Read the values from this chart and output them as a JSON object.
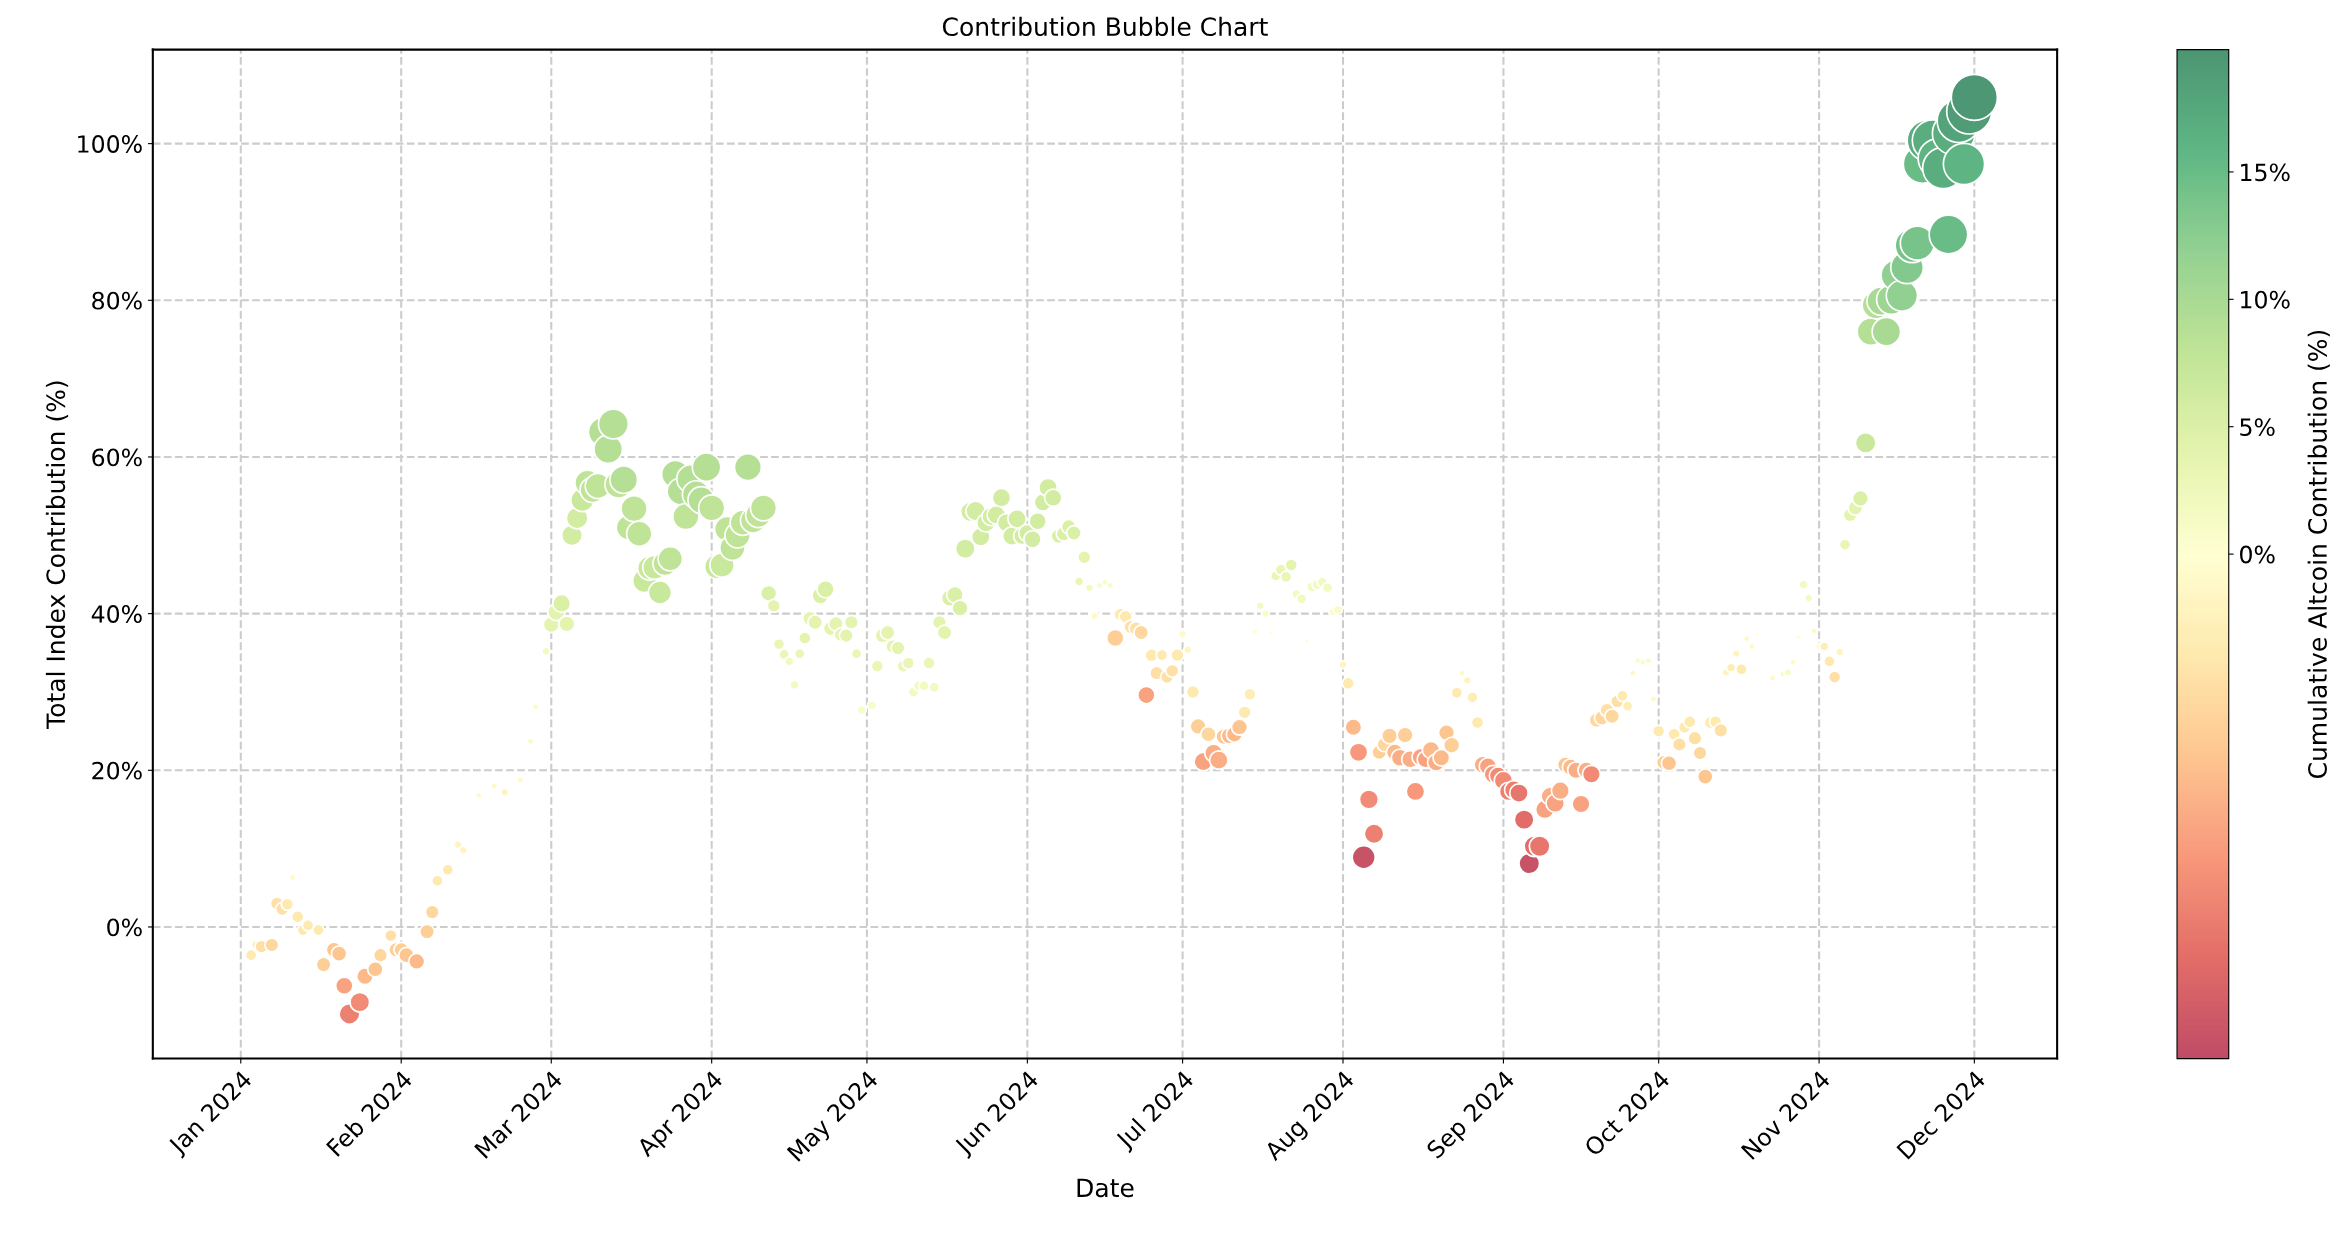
{
  "chart_data": {
    "type": "bubble",
    "title": "Contribution Bubble Chart",
    "xlabel": "Date",
    "ylabel": "Total Index Contribution (%)",
    "clabel": "Cumulative Altcoin Contribution (%)",
    "xlim": [
      "2023-12-15",
      "2024-12-17"
    ],
    "ylim": [
      -16.8,
      112
    ],
    "xticks": [
      {
        "value": "2024-01-01",
        "label": "Jan 2024"
      },
      {
        "value": "2024-02-01",
        "label": "Feb 2024"
      },
      {
        "value": "2024-03-01",
        "label": "Mar 2024"
      },
      {
        "value": "2024-04-01",
        "label": "Apr 2024"
      },
      {
        "value": "2024-05-01",
        "label": "May 2024"
      },
      {
        "value": "2024-06-01",
        "label": "Jun 2024"
      },
      {
        "value": "2024-07-01",
        "label": "Jul 2024"
      },
      {
        "value": "2024-08-01",
        "label": "Aug 2024"
      },
      {
        "value": "2024-09-01",
        "label": "Sep 2024"
      },
      {
        "value": "2024-10-01",
        "label": "Oct 2024"
      },
      {
        "value": "2024-11-01",
        "label": "Nov 2024"
      },
      {
        "value": "2024-12-01",
        "label": "Dec 2024"
      }
    ],
    "yticks": [
      {
        "value": 0,
        "label": "0%"
      },
      {
        "value": 20,
        "label": "20%"
      },
      {
        "value": 40,
        "label": "40%"
      },
      {
        "value": 60,
        "label": "60%"
      },
      {
        "value": 80,
        "label": "80%"
      },
      {
        "value": 100,
        "label": "100%"
      }
    ],
    "clim": [
      -19.8,
      19.8
    ],
    "cticks": [
      {
        "value": 0,
        "label": "0%"
      },
      {
        "value": 5,
        "label": "5%"
      },
      {
        "value": 10,
        "label": "10%"
      },
      {
        "value": 15,
        "label": "15%"
      }
    ],
    "grid": true,
    "marker": "circle",
    "series": [
      {
        "x": [
          "2024-01-03",
          "2024-01-04",
          "2024-01-05",
          "2024-01-07",
          "2024-01-08",
          "2024-01-09",
          "2024-01-10",
          "2024-01-11",
          "2024-01-12",
          "2024-01-13",
          "2024-01-14",
          "2024-01-16",
          "2024-01-17",
          "2024-01-19",
          "2024-01-20",
          "2024-01-21",
          "2024-01-22",
          "2024-01-24",
          "2024-01-25",
          "2024-01-27",
          "2024-01-28",
          "2024-01-30",
          "2024-01-31",
          "2024-02-01",
          "2024-02-02",
          "2024-02-04",
          "2024-02-06",
          "2024-02-07",
          "2024-02-08",
          "2024-02-10",
          "2024-02-12",
          "2024-02-13",
          "2024-02-16",
          "2024-02-19",
          "2024-02-21",
          "2024-02-24",
          "2024-02-26",
          "2024-02-27",
          "2024-02-29",
          "2024-03-01",
          "2024-03-02",
          "2024-03-03",
          "2024-03-04",
          "2024-03-05",
          "2024-03-06",
          "2024-03-07",
          "2024-03-08",
          "2024-03-09",
          "2024-03-10",
          "2024-03-11",
          "2024-03-12",
          "2024-03-13",
          "2024-03-14",
          "2024-03-15",
          "2024-03-16",
          "2024-03-17",
          "2024-03-18",
          "2024-03-19",
          "2024-03-20",
          "2024-03-21",
          "2024-03-22",
          "2024-03-23",
          "2024-03-24",
          "2024-03-25",
          "2024-03-26",
          "2024-03-27",
          "2024-03-28",
          "2024-03-29",
          "2024-03-30",
          "2024-03-31",
          "2024-04-01",
          "2024-04-02",
          "2024-04-03",
          "2024-04-04",
          "2024-04-05",
          "2024-04-06",
          "2024-04-07",
          "2024-04-08",
          "2024-04-09",
          "2024-04-10",
          "2024-04-11",
          "2024-04-12",
          "2024-04-13",
          "2024-04-14",
          "2024-04-15",
          "2024-04-16",
          "2024-04-17",
          "2024-04-18",
          "2024-04-19",
          "2024-04-20",
          "2024-04-21",
          "2024-04-22",
          "2024-04-23",
          "2024-04-24",
          "2024-04-25",
          "2024-04-26",
          "2024-04-27",
          "2024-04-28",
          "2024-04-29",
          "2024-04-30",
          "2024-05-02",
          "2024-05-03",
          "2024-05-04",
          "2024-05-05",
          "2024-05-06",
          "2024-05-07",
          "2024-05-08",
          "2024-05-09",
          "2024-05-10",
          "2024-05-11",
          "2024-05-12",
          "2024-05-13",
          "2024-05-14",
          "2024-05-15",
          "2024-05-16",
          "2024-05-17",
          "2024-05-18",
          "2024-05-19",
          "2024-05-20",
          "2024-05-21",
          "2024-05-22",
          "2024-05-23",
          "2024-05-24",
          "2024-05-25",
          "2024-05-26",
          "2024-05-27",
          "2024-05-28",
          "2024-05-29",
          "2024-05-30",
          "2024-05-31",
          "2024-06-01",
          "2024-06-02",
          "2024-06-03",
          "2024-06-04",
          "2024-06-05",
          "2024-06-06",
          "2024-06-07",
          "2024-06-08",
          "2024-06-09",
          "2024-06-10",
          "2024-06-11",
          "2024-06-12",
          "2024-06-13",
          "2024-06-14",
          "2024-06-15",
          "2024-06-16",
          "2024-06-17",
          "2024-06-18",
          "2024-06-19",
          "2024-06-20",
          "2024-06-21",
          "2024-06-22",
          "2024-06-23",
          "2024-06-24",
          "2024-06-25",
          "2024-06-26",
          "2024-06-27",
          "2024-06-28",
          "2024-06-29",
          "2024-06-30",
          "2024-07-01",
          "2024-07-02",
          "2024-07-03",
          "2024-07-04",
          "2024-07-05",
          "2024-07-06",
          "2024-07-07",
          "2024-07-08",
          "2024-07-09",
          "2024-07-10",
          "2024-07-11",
          "2024-07-12",
          "2024-07-13",
          "2024-07-14",
          "2024-07-15",
          "2024-07-16",
          "2024-07-17",
          "2024-07-18",
          "2024-07-19",
          "2024-07-20",
          "2024-07-21",
          "2024-07-22",
          "2024-07-23",
          "2024-07-24",
          "2024-07-25",
          "2024-07-26",
          "2024-07-27",
          "2024-07-28",
          "2024-07-29",
          "2024-07-30",
          "2024-07-31",
          "2024-08-01",
          "2024-08-02",
          "2024-08-03",
          "2024-08-04",
          "2024-08-05",
          "2024-08-06",
          "2024-08-07",
          "2024-08-08",
          "2024-08-09",
          "2024-08-10",
          "2024-08-11",
          "2024-08-12",
          "2024-08-13",
          "2024-08-14",
          "2024-08-15",
          "2024-08-16",
          "2024-08-17",
          "2024-08-18",
          "2024-08-19",
          "2024-08-20",
          "2024-08-21",
          "2024-08-22",
          "2024-08-23",
          "2024-08-24",
          "2024-08-25",
          "2024-08-26",
          "2024-08-27",
          "2024-08-28",
          "2024-08-29",
          "2024-08-30",
          "2024-08-31",
          "2024-09-01",
          "2024-09-02",
          "2024-09-03",
          "2024-09-04",
          "2024-09-05",
          "2024-09-06",
          "2024-09-07",
          "2024-09-08",
          "2024-09-09",
          "2024-09-10",
          "2024-09-11",
          "2024-09-12",
          "2024-09-13",
          "2024-09-14",
          "2024-09-15",
          "2024-09-16",
          "2024-09-17",
          "2024-09-18",
          "2024-09-19",
          "2024-09-20",
          "2024-09-21",
          "2024-09-22",
          "2024-09-23",
          "2024-09-24",
          "2024-09-25",
          "2024-09-26",
          "2024-09-27",
          "2024-09-28",
          "2024-09-29",
          "2024-09-30",
          "2024-10-01",
          "2024-10-02",
          "2024-10-03",
          "2024-10-04",
          "2024-10-05",
          "2024-10-06",
          "2024-10-07",
          "2024-10-08",
          "2024-10-09",
          "2024-10-10",
          "2024-10-11",
          "2024-10-12",
          "2024-10-13",
          "2024-10-14",
          "2024-10-15",
          "2024-10-16",
          "2024-10-17",
          "2024-10-18",
          "2024-10-19",
          "2024-10-20",
          "2024-10-23",
          "2024-10-25",
          "2024-10-26",
          "2024-10-27",
          "2024-10-28",
          "2024-10-29",
          "2024-10-30",
          "2024-10-31",
          "2024-11-01",
          "2024-11-02",
          "2024-11-03",
          "2024-11-04",
          "2024-11-05",
          "2024-11-06",
          "2024-11-07",
          "2024-11-08",
          "2024-11-09",
          "2024-11-10",
          "2024-11-11",
          "2024-11-12",
          "2024-11-13",
          "2024-11-14",
          "2024-11-15",
          "2024-11-16",
          "2024-11-17",
          "2024-11-18",
          "2024-11-19",
          "2024-11-20",
          "2024-11-21",
          "2024-11-22",
          "2024-11-23",
          "2024-11-24",
          "2024-11-25",
          "2024-11-26",
          "2024-11-27",
          "2024-11-28",
          "2024-11-29",
          "2024-11-30",
          "2024-12-01"
        ],
        "values": [
          -3.6,
          -2.3,
          -2.5,
          -2.3,
          3.0,
          2.3,
          2.9,
          6.3,
          1.3,
          -0.4,
          0.2,
          -0.4,
          -4.8,
          -2.9,
          -3.4,
          -7.5,
          -11.1,
          -9.6,
          -6.3,
          -5.4,
          -3.6,
          -1.1,
          -2.9,
          -2.9,
          -3.6,
          -4.4,
          -0.6,
          1.9,
          5.9,
          7.3,
          10.5,
          9.8,
          16.8,
          18.0,
          17.2,
          18.8,
          23.7,
          28.1,
          35.2,
          38.6,
          40.2,
          41.3,
          38.7,
          50.0,
          52.2,
          54.5,
          56.7,
          55.8,
          56.3,
          63.2,
          61.0,
          64.2,
          56.5,
          57.1,
          51.0,
          53.4,
          50.2,
          44.2,
          45.8,
          45.9,
          42.7,
          46.4,
          47.0,
          57.8,
          55.6,
          52.4,
          57.2,
          55.2,
          54.5,
          58.7,
          53.5,
          46.0,
          46.2,
          50.8,
          48.4,
          50.0,
          51.6,
          58.7,
          51.9,
          52.6,
          53.5,
          42.6,
          41.0,
          36.1,
          34.8,
          33.9,
          30.9,
          34.9,
          36.9,
          39.4,
          38.9,
          42.3,
          43.1,
          38.1,
          38.7,
          37.3,
          37.2,
          38.9,
          34.9,
          27.7,
          28.3,
          33.3,
          37.2,
          37.6,
          35.8,
          35.6,
          33.3,
          33.7,
          30.0,
          30.8,
          30.8,
          33.7,
          30.6,
          38.9,
          37.6,
          42.0,
          42.4,
          40.7,
          48.3,
          53.0,
          53.1,
          49.8,
          51.6,
          52.4,
          52.6,
          54.8,
          51.6,
          49.9,
          52.1,
          49.9,
          50.3,
          49.5,
          51.8,
          54.2,
          56.1,
          54.8,
          49.9,
          50.2,
          51.1,
          50.3,
          44.1,
          47.2,
          43.3,
          39.7,
          43.6,
          44.0,
          43.6,
          36.9,
          39.9,
          39.6,
          38.3,
          38.1,
          37.6,
          29.6,
          34.7,
          32.4,
          34.7,
          31.9,
          32.7,
          34.7,
          37.4,
          35.4,
          30.0,
          25.6,
          21.1,
          24.6,
          22.2,
          21.3,
          24.3,
          24.4,
          24.6,
          25.5,
          27.4,
          29.7,
          37.7,
          41.0,
          40.0,
          37.5,
          44.8,
          45.6,
          44.7,
          46.2,
          42.5,
          41.9,
          36.5,
          43.4,
          43.7,
          44.0,
          43.3,
          40.2,
          40.5,
          33.5,
          31.1,
          25.5,
          22.3,
          8.9,
          16.3,
          11.9,
          22.3,
          23.3,
          24.4,
          22.3,
          21.6,
          24.5,
          21.4,
          17.3,
          21.7,
          21.4,
          22.6,
          21.0,
          21.6,
          24.8,
          23.2,
          29.9,
          32.4,
          31.5,
          29.3,
          26.1,
          20.7,
          20.5,
          19.5,
          19.3,
          18.7,
          17.3,
          17.5,
          17.1,
          13.7,
          8.1,
          10.3,
          10.3,
          15.0,
          16.7,
          15.8,
          17.4,
          20.7,
          20.4,
          20.0,
          15.7,
          20.0,
          19.5,
          26.4,
          26.7,
          27.7,
          26.9,
          28.8,
          29.5,
          28.2,
          32.4,
          34.0,
          33.8,
          34.0,
          29.1,
          25.0,
          21.0,
          20.9,
          24.6,
          23.3,
          25.5,
          26.2,
          24.1,
          22.2,
          19.2,
          26.1,
          26.2,
          25.1,
          32.5,
          33.1,
          34.9,
          32.9,
          36.8,
          35.8,
          37.3,
          31.8,
          32.3,
          32.5,
          33.8,
          37.0,
          43.7,
          42.0,
          37.8,
          35.8,
          35.8,
          33.9,
          31.9,
          35.1,
          48.8,
          52.6,
          53.5,
          54.7,
          61.8,
          76.0,
          79.4,
          79.9,
          76.0,
          80.1,
          83.2,
          80.6,
          84.2,
          87.0,
          87.3,
          97.4,
          100.4,
          100.4,
          98.1,
          96.9,
          88.4,
          101.3,
          102.9,
          97.4,
          104.1,
          105.9
        ],
        "cvalues": [
          -4,
          -3,
          -5,
          -6,
          -5,
          -5,
          -4,
          -1,
          -4,
          -4,
          -4,
          -4,
          -7,
          -8,
          -8,
          -11,
          -14,
          -13,
          -9,
          -8,
          -6,
          -5,
          -7,
          -7,
          -8,
          -9,
          -7,
          -6,
          -4,
          -4,
          -2,
          -2,
          -1,
          -1,
          -2,
          -1,
          1,
          1,
          2,
          4,
          4,
          5,
          4,
          6,
          6,
          7,
          8,
          8,
          8,
          9,
          9,
          9,
          8,
          9,
          8,
          8,
          8,
          7,
          7,
          7,
          7,
          8,
          8,
          9,
          9,
          8,
          9,
          9,
          9,
          9,
          8,
          7,
          7,
          8,
          8,
          8,
          8,
          9,
          8,
          8,
          8,
          5,
          4,
          3,
          3,
          2,
          2,
          3,
          4,
          4,
          4,
          5,
          5,
          4,
          4,
          4,
          4,
          4,
          3,
          1,
          1,
          3,
          4,
          4,
          4,
          4,
          3,
          3,
          2,
          2,
          2,
          3,
          2,
          4,
          4,
          5,
          5,
          5,
          6,
          6,
          6,
          6,
          6,
          6,
          6,
          6,
          6,
          6,
          6,
          6,
          6,
          6,
          6,
          6,
          6,
          6,
          5,
          5,
          5,
          5,
          3,
          4,
          2,
          -1,
          1,
          1,
          1,
          -7,
          -4,
          -4,
          -5,
          -5,
          -6,
          -11,
          -4,
          -5,
          -4,
          -5,
          -5,
          -4,
          -1,
          -2,
          -4,
          -7,
          -11,
          -6,
          -10,
          -10,
          -8,
          -9,
          -9,
          -8,
          -4,
          -3,
          0,
          2,
          1,
          0,
          3,
          3,
          3,
          4,
          2,
          2,
          0,
          2,
          2,
          2,
          2,
          1,
          1,
          -2,
          -4,
          -9,
          -12,
          -19,
          -13,
          -14,
          -7,
          -6,
          -7,
          -9,
          -10,
          -7,
          -10,
          -12,
          -11,
          -11,
          -9,
          -10,
          -9,
          -8,
          -7,
          -4,
          -1,
          -2,
          -3,
          -4,
          -10,
          -11,
          -12,
          -13,
          -13,
          -14,
          -14,
          -15,
          -16,
          -19,
          -16,
          -15,
          -11,
          -10,
          -11,
          -10,
          -8,
          -9,
          -10,
          -11,
          -10,
          -13,
          -6,
          -6,
          -5,
          -6,
          -5,
          -4,
          -3,
          -1,
          1,
          1,
          1,
          -1,
          -4,
          -7,
          -8,
          -4,
          -5,
          -4,
          -4,
          -5,
          -6,
          -8,
          -4,
          -4,
          -5,
          -2,
          -3,
          -2,
          -4,
          -1,
          -1,
          0,
          -1,
          1,
          1,
          -1,
          0,
          2,
          2,
          -1,
          -1,
          -3,
          -4,
          -5,
          -2,
          3,
          4,
          4,
          5,
          7,
          9,
          9,
          10,
          10,
          11,
          12,
          12,
          13,
          14,
          14,
          15,
          17,
          17,
          16,
          17,
          15,
          17,
          18,
          16,
          19,
          19.5
        ],
        "sizes": [
          0.06,
          0.04,
          0.08,
          0.09,
          0.08,
          0.08,
          0.07,
          0.02,
          0.07,
          0.06,
          0.06,
          0.06,
          0.1,
          0.11,
          0.11,
          0.14,
          0.2,
          0.18,
          0.13,
          0.11,
          0.09,
          0.07,
          0.1,
          0.1,
          0.11,
          0.12,
          0.1,
          0.09,
          0.06,
          0.06,
          0.03,
          0.03,
          0.02,
          0.02,
          0.03,
          0.02,
          0.02,
          0.02,
          0.03,
          0.12,
          0.14,
          0.15,
          0.12,
          0.2,
          0.22,
          0.25,
          0.3,
          0.3,
          0.3,
          0.4,
          0.38,
          0.42,
          0.35,
          0.36,
          0.3,
          0.32,
          0.3,
          0.26,
          0.27,
          0.27,
          0.25,
          0.28,
          0.28,
          0.36,
          0.34,
          0.32,
          0.38,
          0.36,
          0.34,
          0.38,
          0.32,
          0.28,
          0.28,
          0.3,
          0.3,
          0.3,
          0.3,
          0.34,
          0.3,
          0.3,
          0.32,
          0.12,
          0.08,
          0.06,
          0.05,
          0.04,
          0.04,
          0.05,
          0.07,
          0.1,
          0.1,
          0.13,
          0.14,
          0.1,
          0.1,
          0.09,
          0.09,
          0.09,
          0.05,
          0.04,
          0.04,
          0.07,
          0.1,
          0.1,
          0.09,
          0.09,
          0.07,
          0.07,
          0.05,
          0.05,
          0.05,
          0.07,
          0.05,
          0.09,
          0.1,
          0.13,
          0.13,
          0.12,
          0.18,
          0.18,
          0.18,
          0.16,
          0.16,
          0.16,
          0.16,
          0.16,
          0.16,
          0.16,
          0.16,
          0.14,
          0.14,
          0.14,
          0.14,
          0.14,
          0.16,
          0.14,
          0.1,
          0.1,
          0.1,
          0.1,
          0.04,
          0.08,
          0.03,
          0.03,
          0.02,
          0.02,
          0.02,
          0.14,
          0.08,
          0.08,
          0.09,
          0.09,
          0.1,
          0.14,
          0.08,
          0.09,
          0.06,
          0.08,
          0.08,
          0.08,
          0.03,
          0.03,
          0.08,
          0.12,
          0.16,
          0.11,
          0.15,
          0.16,
          0.12,
          0.12,
          0.12,
          0.12,
          0.08,
          0.07,
          0.02,
          0.03,
          0.03,
          0.01,
          0.05,
          0.06,
          0.06,
          0.07,
          0.04,
          0.05,
          0.01,
          0.05,
          0.05,
          0.05,
          0.05,
          0.03,
          0.04,
          0.03,
          0.07,
          0.13,
          0.16,
          0.25,
          0.17,
          0.18,
          0.1,
          0.1,
          0.12,
          0.13,
          0.14,
          0.12,
          0.14,
          0.16,
          0.14,
          0.14,
          0.14,
          0.14,
          0.13,
          0.12,
          0.12,
          0.06,
          0.02,
          0.03,
          0.06,
          0.07,
          0.14,
          0.14,
          0.15,
          0.15,
          0.16,
          0.16,
          0.16,
          0.16,
          0.18,
          0.2,
          0.2,
          0.2,
          0.16,
          0.15,
          0.16,
          0.15,
          0.12,
          0.13,
          0.13,
          0.15,
          0.13,
          0.15,
          0.1,
          0.1,
          0.09,
          0.1,
          0.08,
          0.06,
          0.05,
          0.02,
          0.02,
          0.02,
          0.02,
          0.02,
          0.07,
          0.1,
          0.11,
          0.07,
          0.09,
          0.07,
          0.07,
          0.09,
          0.09,
          0.11,
          0.07,
          0.07,
          0.09,
          0.03,
          0.04,
          0.03,
          0.06,
          0.02,
          0.02,
          0.01,
          0.02,
          0.02,
          0.03,
          0.02,
          0.01,
          0.04,
          0.03,
          0.02,
          0.02,
          0.04,
          0.06,
          0.07,
          0.03,
          0.06,
          0.09,
          0.1,
          0.12,
          0.2,
          0.35,
          0.36,
          0.38,
          0.38,
          0.42,
          0.46,
          0.46,
          0.5,
          0.55,
          0.55,
          0.7,
          0.8,
          0.8,
          0.75,
          0.8,
          0.7,
          0.85,
          0.88,
          0.8,
          0.95,
          1
        ]
      }
    ]
  }
}
